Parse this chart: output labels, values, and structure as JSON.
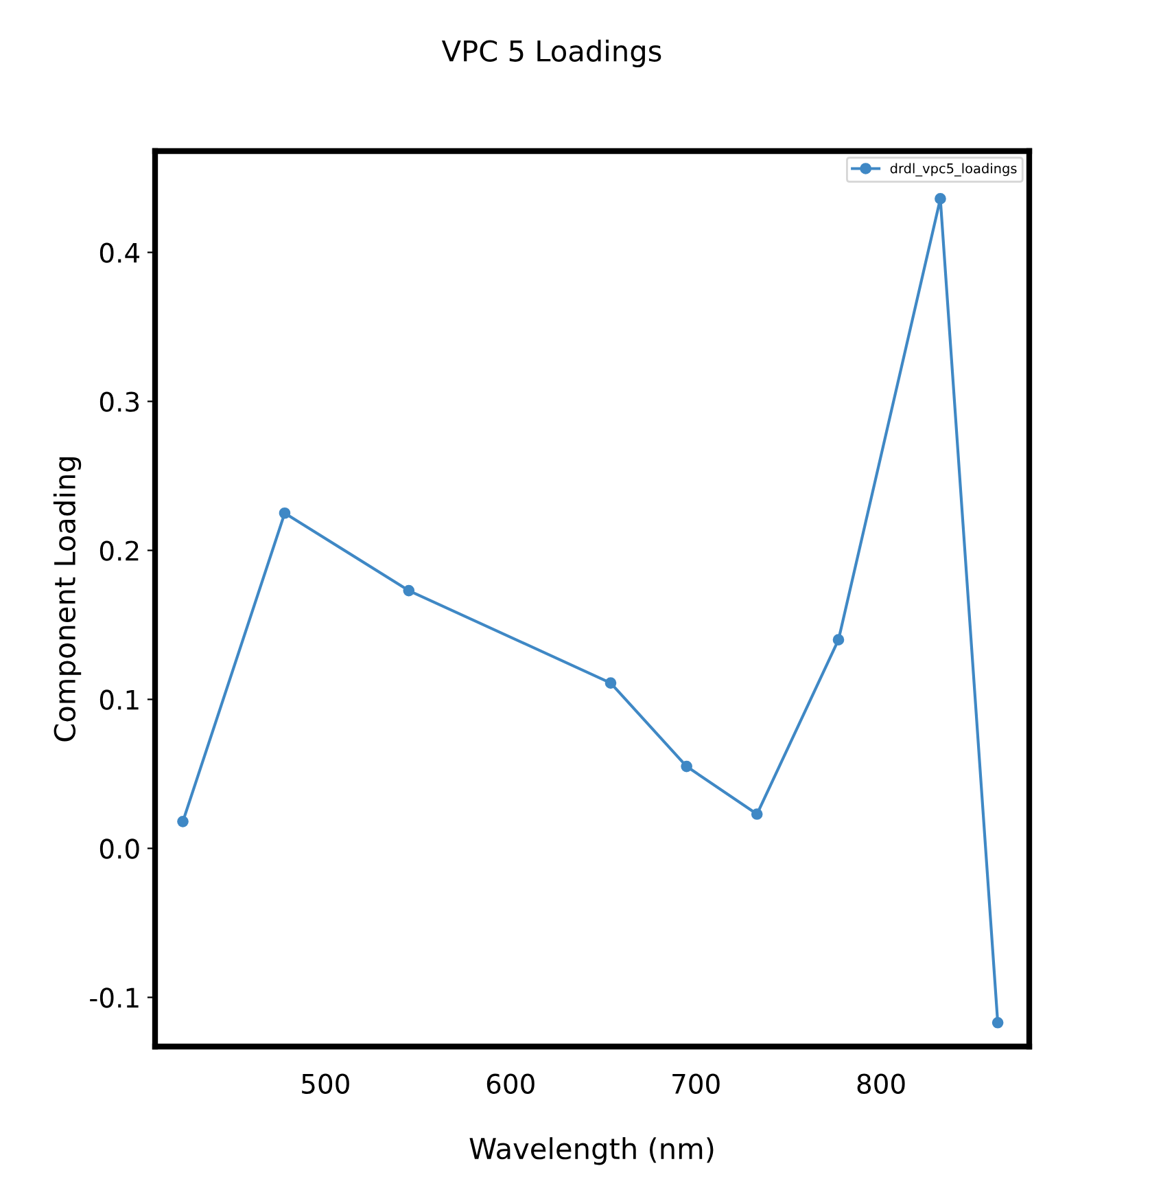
{
  "chart_data": {
    "type": "line",
    "title": "VPC 5 Loadings",
    "xlabel": "Wavelength (nm)",
    "ylabel": "Component Loading",
    "x": [
      423,
      478,
      545,
      654,
      695,
      733,
      777,
      832,
      863
    ],
    "series": [
      {
        "name": "drdl_vpc5_loadings",
        "color": "#3f88c5",
        "values": [
          0.018,
          0.225,
          0.173,
          0.111,
          0.055,
          0.023,
          0.14,
          0.436,
          -0.117
        ]
      }
    ],
    "xlim": [
      408,
      880
    ],
    "xticks": [
      500,
      600,
      700,
      800
    ],
    "ylim": [
      -0.133,
      0.468
    ],
    "yticks": [
      -0.1,
      {
        "value": 0,
        "label": "0.0"
      },
      0.1,
      0.2,
      0.3,
      0.4
    ],
    "grid": false,
    "legend": "top right",
    "marker": "circle",
    "line_style": "solid"
  }
}
